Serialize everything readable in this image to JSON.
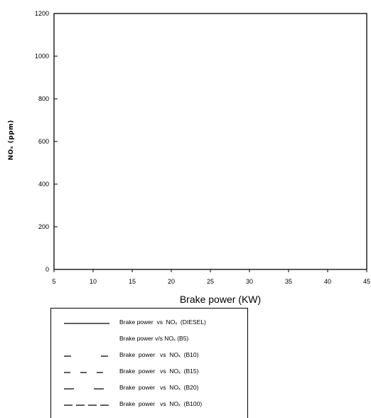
{
  "chart_data": {
    "type": "line",
    "title": "",
    "xlabel": "Brake power (KW)",
    "ylabel": "NOₓ (ppm)",
    "xlim": [
      5,
      45
    ],
    "ylim": [
      0,
      1200
    ],
    "x_ticks": [
      "5",
      "10",
      "15",
      "20",
      "25",
      "30",
      "35",
      "40",
      "45"
    ],
    "y_ticks": [
      "0",
      "200",
      "400",
      "600",
      "800",
      "1000",
      "1200"
    ],
    "grid": false,
    "legend_position": "bottom",
    "series": [
      {
        "name": "Brake power vs NOx (DIESEL)",
        "style": "solid",
        "x": [],
        "y": []
      },
      {
        "name": "Brake power v/s NOx (B5)",
        "style": "none",
        "x": [],
        "y": []
      },
      {
        "name": "Brake power vs NOx (B10)",
        "style": "long-dash",
        "x": [],
        "y": []
      },
      {
        "name": "Brake power vs NOx (B15)",
        "style": "dash",
        "x": [],
        "y": []
      },
      {
        "name": "Brake power vs NOx (B20)",
        "style": "long-dash-wide",
        "x": [],
        "y": []
      },
      {
        "name": "Brake power vs NOx (B100)",
        "style": "short-dash",
        "x": [],
        "y": []
      }
    ]
  },
  "legend": {
    "items": [
      {
        "label": "Brake power  vs  NOₓ  (DIESEL)"
      },
      {
        "label": "Brake power v/s NOₓ (B5)"
      },
      {
        "label": "Brake  power   vs  NOₓ  (B10)"
      },
      {
        "label": "Brake  power   vs  NOₓ  (B15)"
      },
      {
        "label": "Brake  power   vs  NOₓ  (B20)"
      },
      {
        "label": "Brake  power   vs  NOₓ  (B100)"
      }
    ]
  }
}
